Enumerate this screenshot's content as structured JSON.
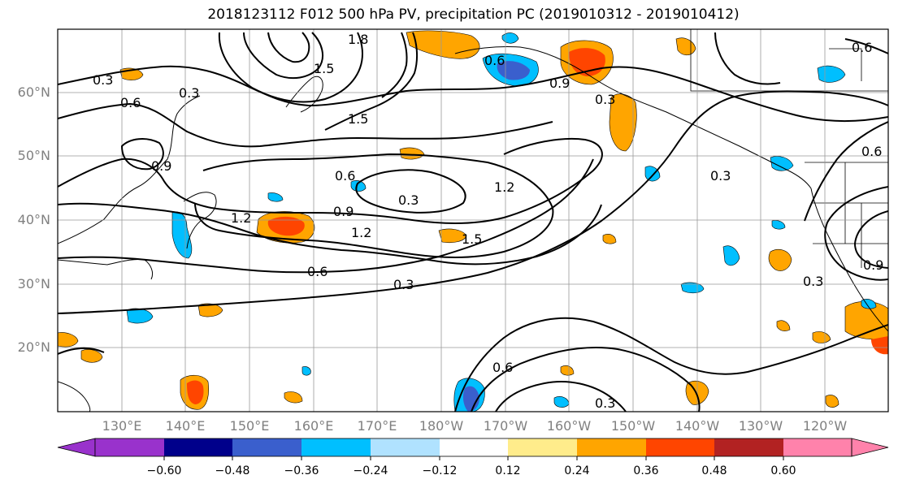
{
  "title": "2018123112 F012 500 hPa PV, precipitation PC (2019010312 - 2019010412)",
  "latitude_labels": [
    "60°N",
    "50°N",
    "40°N",
    "30°N",
    "20°N"
  ],
  "longitude_labels": [
    "130°E",
    "140°E",
    "150°E",
    "160°E",
    "170°E",
    "180°W",
    "170°W",
    "160°W",
    "150°W",
    "140°W",
    "130°W",
    "120°W"
  ],
  "pv_contour_labels": [
    "0.3",
    "0.6",
    "0.9",
    "1.2",
    "1.5",
    "1.8",
    "0.3",
    "0.6",
    "0.9",
    "1.2",
    "1.5",
    "0.3",
    "0.6",
    "0.3",
    "0.6",
    "0.3",
    "0.6",
    "0.9",
    "0.3",
    "0.6",
    "0.3",
    "0.9",
    "1.2",
    "0.3",
    "0.6",
    "1.5"
  ],
  "colorbar": {
    "ticks": [
      "−0.60",
      "−0.48",
      "−0.36",
      "−0.24",
      "−0.12",
      "0.12",
      "0.24",
      "0.36",
      "0.48",
      "0.60"
    ],
    "colors": [
      "#9932cc",
      "#00008b",
      "#3a5fcd",
      "#00bfff",
      "#b0e2ff",
      "#ffffff",
      "#ffec8b",
      "#ffa500",
      "#ff4500",
      "#b22222",
      "#ff82ab"
    ]
  }
}
